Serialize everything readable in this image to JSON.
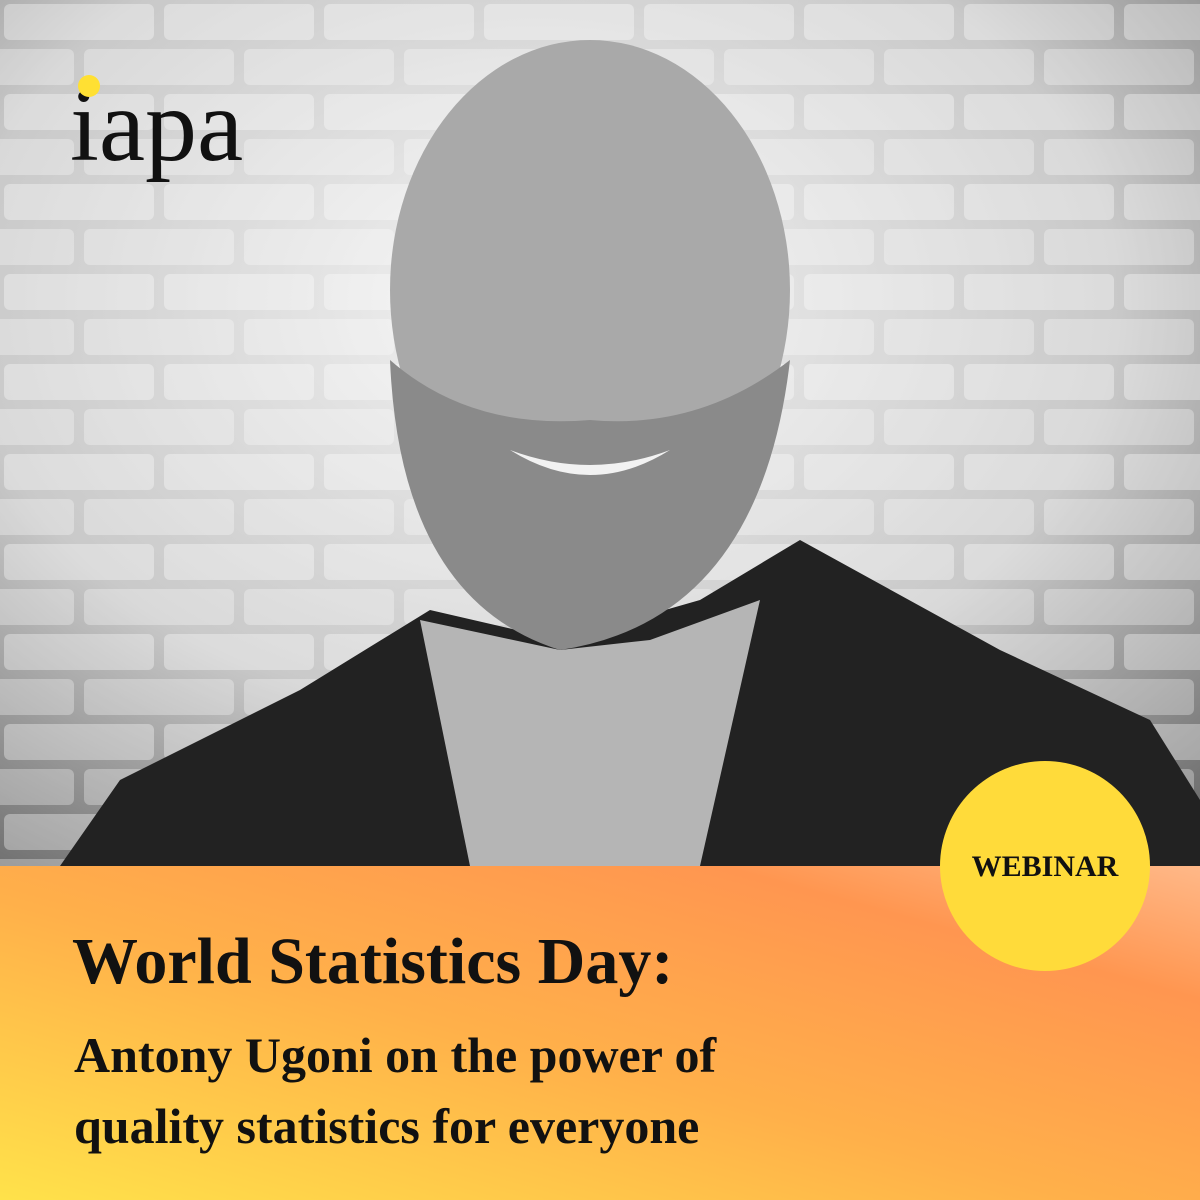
{
  "logo": {
    "text": "iapa"
  },
  "badge": {
    "text": "WEBINAR"
  },
  "headline": {
    "title": "World Statistics Day:",
    "subtitle_lines": [
      "Antony Ugoni on the power of",
      "quality statistics for everyone"
    ]
  }
}
